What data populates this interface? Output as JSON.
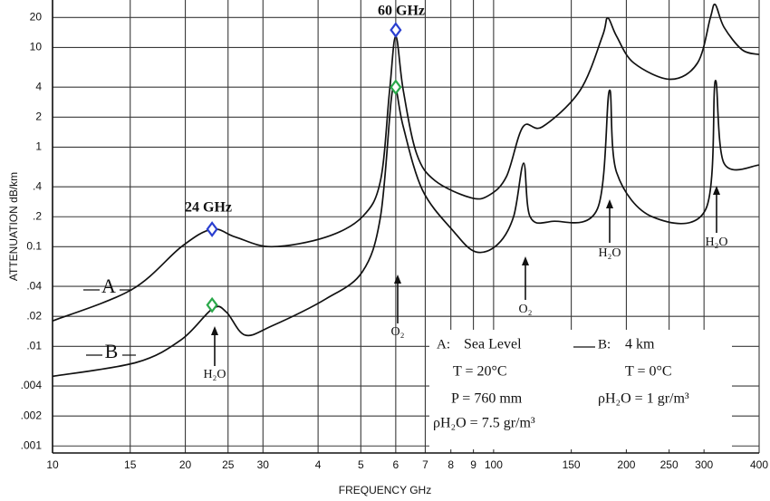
{
  "chart_data": {
    "type": "line",
    "xlabel": "FREQUENCY GHz",
    "ylabel": "ATTENUATION dB/km",
    "xlim": [
      10,
      400
    ],
    "ylim": [
      0.00085,
      30
    ],
    "log_x": true,
    "log_y": true,
    "grid": true,
    "xticks": [
      10,
      15,
      20,
      25,
      30,
      {
        "value": 40,
        "label": "4"
      },
      {
        "value": 50,
        "label": "5"
      },
      {
        "value": 60,
        "label": "6"
      },
      {
        "value": 70,
        "label": "7"
      },
      {
        "value": 80,
        "label": "8"
      },
      {
        "value": 90,
        "label": "9"
      },
      100,
      150,
      200,
      250,
      300,
      400
    ],
    "yticks": [
      20,
      10,
      4,
      2,
      1,
      {
        "value": 0.4,
        "label": ".4"
      },
      {
        "value": 0.2,
        "label": ".2"
      },
      0.1,
      {
        "value": 0.04,
        "label": ".04"
      },
      {
        "value": 0.02,
        "label": ".02"
      },
      {
        "value": 0.01,
        "label": ".01"
      },
      {
        "value": 0.004,
        "label": ".004"
      },
      {
        "value": 0.002,
        "label": ".002"
      },
      {
        "value": 0.001,
        "label": ".001"
      }
    ],
    "series": [
      {
        "name": "A",
        "color": "#111111",
        "x": [
          10,
          15.1,
          19.6,
          23,
          26,
          31.4,
          41.7,
          50.4,
          55.4,
          58.1,
          60,
          62.4,
          66.9,
          73.7,
          88.9,
          97.8,
          107,
          116.6,
          129,
          157,
          176.5,
          181.4,
          190,
          208,
          252,
          290,
          310,
          318,
          333,
          366,
          400
        ],
        "values": [
          0.018,
          0.037,
          0.1,
          0.15,
          0.125,
          0.1,
          0.125,
          0.2,
          0.46,
          3.7,
          13,
          3.7,
          0.86,
          0.46,
          0.31,
          0.33,
          0.51,
          1.6,
          1.6,
          3.7,
          13,
          19.8,
          13,
          7,
          4.8,
          7,
          19.8,
          27,
          16,
          9.5,
          8.5
        ]
      },
      {
        "name": "B",
        "color": "#111111",
        "x": [
          10,
          15.5,
          19.6,
          23.1,
          24.8,
          27.3,
          31.4,
          41.7,
          50.4,
          55.4,
          58.6,
          60,
          62.4,
          69,
          81,
          91,
          102,
          111,
          117,
          121,
          136,
          172,
          183,
          190,
          229,
          303,
          318,
          333,
          400
        ],
        "values": [
          0.005,
          0.0069,
          0.0117,
          0.024,
          0.022,
          0.013,
          0.016,
          0.03,
          0.056,
          0.2,
          3.0,
          3.9,
          1.6,
          0.37,
          0.144,
          0.089,
          0.105,
          0.2,
          0.69,
          0.2,
          0.18,
          0.24,
          3.7,
          0.56,
          0.2,
          0.24,
          4.6,
          0.69,
          0.66
        ]
      }
    ],
    "markers": [
      {
        "color": "#2a3fd0",
        "x": [
          23,
          60
        ],
        "values": [
          0.15,
          15
        ]
      },
      {
        "color": "#2aa84a",
        "x": [
          23,
          60
        ],
        "values": [
          0.026,
          4
        ]
      }
    ],
    "annotations": [
      "24 GHz",
      "60 GHz",
      "H₂O",
      "O₂",
      "O₂",
      "H₂O",
      "H₂O"
    ],
    "conditions": [
      {
        "label": "A:",
        "lines": [
          "Sea Level",
          "T = 20°C",
          "P = 760 mm",
          "ρH₂O = 7.5 gr/m³"
        ]
      },
      {
        "label": "B:",
        "lines": [
          "4 km",
          "T = 0°C",
          "ρH₂O = 1 gr/m³"
        ]
      }
    ]
  }
}
